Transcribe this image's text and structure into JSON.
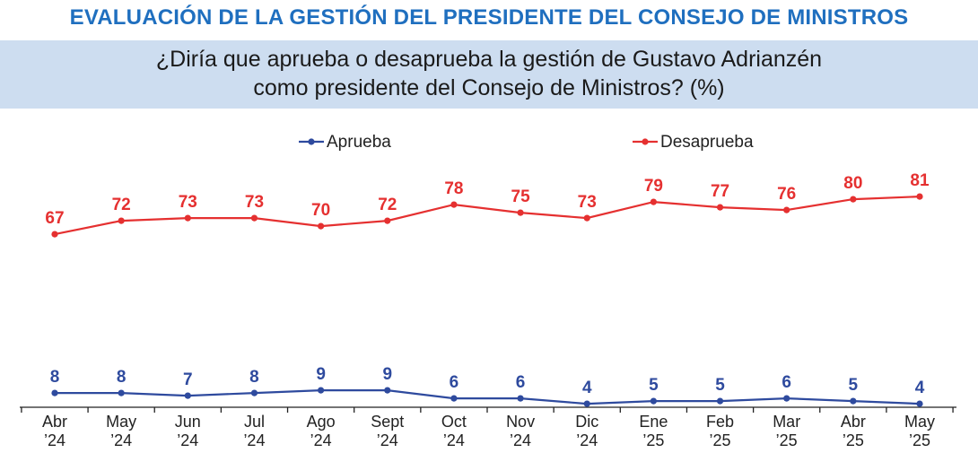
{
  "header": {
    "title": "EVALUACIÓN DE LA GESTIÓN DEL PRESIDENTE DEL CONSEJO DE MINISTROS",
    "question_line1": "¿Diría que aprueba o desaprueba la gestión de Gustavo Adrianzén",
    "question_line2": "como presidente del Consejo de Ministros? (%)"
  },
  "chart_data": {
    "type": "line",
    "title": "",
    "xlabel": "",
    "ylabel": "",
    "ylim": [
      0,
      100
    ],
    "grid": false,
    "legend_position": "top-center",
    "categories": [
      [
        "Abr",
        "’24"
      ],
      [
        "May",
        "’24"
      ],
      [
        "Jun",
        "’24"
      ],
      [
        "Jul",
        "’24"
      ],
      [
        "Ago",
        "’24"
      ],
      [
        "Sept",
        "’24"
      ],
      [
        "Oct",
        "’24"
      ],
      [
        "Nov",
        "’24"
      ],
      [
        "Dic",
        "’24"
      ],
      [
        "Ene",
        "’25"
      ],
      [
        "Feb",
        "’25"
      ],
      [
        "Mar",
        "’25"
      ],
      [
        "Abr",
        "’25"
      ],
      [
        "May",
        "’25"
      ]
    ],
    "series": [
      {
        "name": "Aprueba",
        "color": "#2e4a9e",
        "values": [
          8,
          8,
          7,
          8,
          9,
          9,
          6,
          6,
          4,
          5,
          5,
          6,
          5,
          4
        ]
      },
      {
        "name": "Desaprueba",
        "color": "#e53030",
        "values": [
          67,
          72,
          73,
          73,
          70,
          72,
          78,
          75,
          73,
          79,
          77,
          76,
          80,
          81
        ]
      }
    ]
  }
}
